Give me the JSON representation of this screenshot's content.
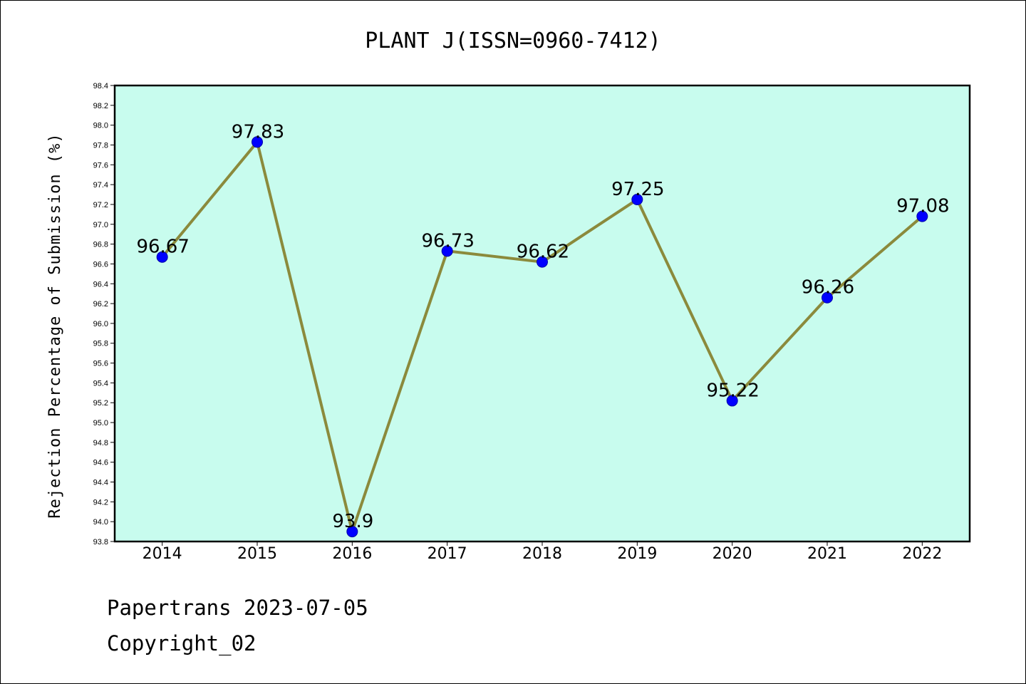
{
  "chart_data": {
    "type": "line",
    "title": "PLANT J(ISSN=0960-7412)",
    "xlabel": "",
    "ylabel": "Rejection Percentage of Submission (%)",
    "categories": [
      "2014",
      "2015",
      "2016",
      "2017",
      "2018",
      "2019",
      "2020",
      "2021",
      "2022"
    ],
    "series": [
      {
        "values": [
          96.67,
          97.83,
          93.9,
          96.73,
          96.62,
          97.25,
          95.22,
          96.26,
          97.08
        ]
      }
    ],
    "data_labels": [
      "96.67",
      "97.83",
      "93.9",
      "96.73",
      "96.62",
      "97.25",
      "95.22",
      "96.26",
      "97.08"
    ],
    "ylim": [
      93.8,
      98.4
    ],
    "yticks": [
      "93.8",
      "94.0",
      "94.2",
      "94.4",
      "94.6",
      "94.8",
      "95.0",
      "95.2",
      "95.4",
      "95.6",
      "95.8",
      "96.0",
      "96.2",
      "96.4",
      "96.6",
      "96.8",
      "97.0",
      "97.2",
      "97.4",
      "97.6",
      "97.8",
      "98.0",
      "98.2",
      "98.4"
    ],
    "grid": false,
    "colors": {
      "plot_background": "#c8fcee",
      "line": "#8b8a3c",
      "marker": "#0000ff"
    }
  },
  "footer": {
    "line1": "Papertrans 2023-07-05",
    "line2": "Copyright_02"
  }
}
